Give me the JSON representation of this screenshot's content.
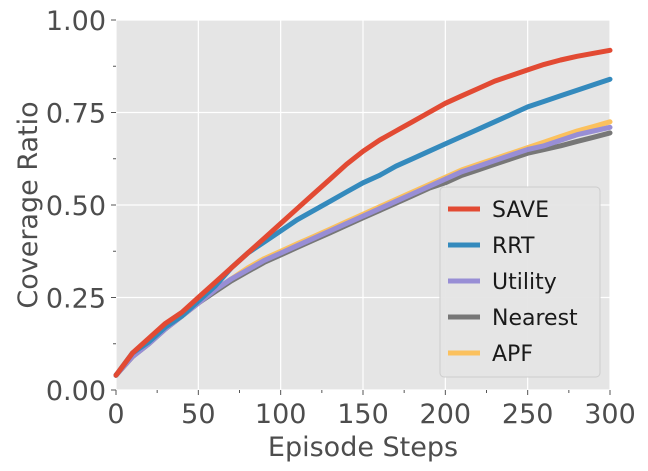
{
  "chart_data": {
    "type": "line",
    "title": "",
    "xlabel": "Episode Steps",
    "ylabel": "Coverage Ratio",
    "xlim": [
      0,
      300
    ],
    "ylim": [
      0,
      1
    ],
    "x_ticks": [
      0,
      50,
      100,
      150,
      200,
      250,
      300
    ],
    "x_tick_labels": [
      "0",
      "50",
      "100",
      "150",
      "200",
      "250",
      "300"
    ],
    "y_ticks": [
      0,
      0.25,
      0.5,
      0.75,
      1.0
    ],
    "y_tick_labels": [
      "0.00",
      "0.25",
      "0.50",
      "0.75",
      "1.00"
    ],
    "grid": true,
    "background": "#e5e5e5",
    "legend_position": "lower-right",
    "x": [
      0,
      10,
      20,
      30,
      40,
      50,
      60,
      70,
      80,
      90,
      100,
      110,
      120,
      130,
      140,
      150,
      160,
      170,
      180,
      190,
      200,
      210,
      220,
      230,
      240,
      250,
      260,
      270,
      280,
      290,
      300
    ],
    "series": [
      {
        "name": "SAVE",
        "color": "#e24a33",
        "values": [
          0.04,
          0.1,
          0.14,
          0.18,
          0.21,
          0.25,
          0.29,
          0.33,
          0.37,
          0.41,
          0.45,
          0.49,
          0.53,
          0.57,
          0.61,
          0.645,
          0.675,
          0.7,
          0.725,
          0.75,
          0.775,
          0.795,
          0.815,
          0.835,
          0.85,
          0.865,
          0.88,
          0.892,
          0.902,
          0.91,
          0.918
        ]
      },
      {
        "name": "RRT",
        "color": "#348abd",
        "values": [
          0.04,
          0.1,
          0.13,
          0.17,
          0.2,
          0.24,
          0.28,
          0.33,
          0.37,
          0.4,
          0.43,
          0.46,
          0.485,
          0.51,
          0.535,
          0.56,
          0.58,
          0.605,
          0.625,
          0.645,
          0.665,
          0.685,
          0.705,
          0.725,
          0.745,
          0.765,
          0.78,
          0.795,
          0.81,
          0.825,
          0.84
        ]
      },
      {
        "name": "Utility",
        "color": "#988ed5",
        "values": [
          0.04,
          0.09,
          0.125,
          0.165,
          0.2,
          0.235,
          0.27,
          0.3,
          0.325,
          0.35,
          0.37,
          0.39,
          0.41,
          0.43,
          0.45,
          0.47,
          0.49,
          0.51,
          0.53,
          0.55,
          0.57,
          0.59,
          0.605,
          0.62,
          0.635,
          0.65,
          0.66,
          0.675,
          0.69,
          0.7,
          0.71
        ]
      },
      {
        "name": "Nearest",
        "color": "#777777",
        "values": [
          0.04,
          0.09,
          0.125,
          0.165,
          0.2,
          0.235,
          0.265,
          0.295,
          0.32,
          0.345,
          0.365,
          0.385,
          0.405,
          0.425,
          0.445,
          0.465,
          0.485,
          0.505,
          0.525,
          0.545,
          0.56,
          0.58,
          0.595,
          0.61,
          0.625,
          0.64,
          0.65,
          0.66,
          0.672,
          0.683,
          0.695
        ]
      },
      {
        "name": "APF",
        "color": "#fbc15e",
        "values": [
          0.04,
          0.09,
          0.13,
          0.165,
          0.2,
          0.235,
          0.27,
          0.3,
          0.33,
          0.355,
          0.375,
          0.395,
          0.415,
          0.435,
          0.455,
          0.475,
          0.495,
          0.515,
          0.535,
          0.555,
          0.575,
          0.595,
          0.61,
          0.625,
          0.64,
          0.655,
          0.67,
          0.685,
          0.7,
          0.712,
          0.725
        ]
      }
    ]
  }
}
